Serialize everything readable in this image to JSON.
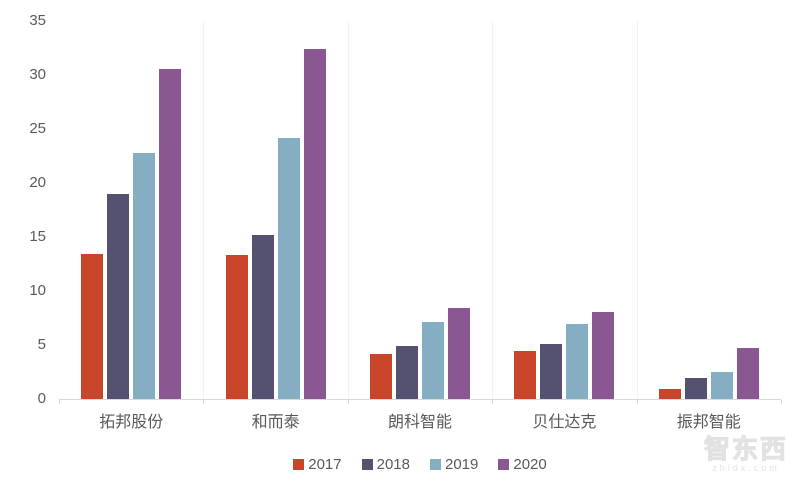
{
  "chart_data": {
    "type": "bar",
    "title": "",
    "xlabel": "",
    "ylabel": "",
    "categories": [
      "拓邦股份",
      "和而泰",
      "朗科智能",
      "贝仕达克",
      "振邦智能"
    ],
    "series": [
      {
        "name": "2017",
        "color": "#C9452A",
        "values": [
          13.4,
          13.3,
          4.2,
          4.4,
          0.9
        ]
      },
      {
        "name": "2018",
        "color": "#555170",
        "values": [
          19.0,
          15.2,
          4.9,
          5.1,
          1.9
        ]
      },
      {
        "name": "2019",
        "color": "#85AEC3",
        "values": [
          22.8,
          24.2,
          7.1,
          6.9,
          2.5
        ]
      },
      {
        "name": "2020",
        "color": "#8A5792",
        "values": [
          30.6,
          32.4,
          8.4,
          8.1,
          4.7
        ]
      }
    ],
    "ylim": [
      0,
      35
    ],
    "y_ticks": [
      0,
      5,
      10,
      15,
      20,
      25,
      30,
      35
    ],
    "grid": "faint vertical lines at category boundaries, no horizontal gridlines",
    "legend_position": "bottom-center",
    "axis_color": "#d9d9d9",
    "label_color": "#595959"
  },
  "watermark": {
    "logo_text": "智东西",
    "url_text": "zhidx.com"
  }
}
